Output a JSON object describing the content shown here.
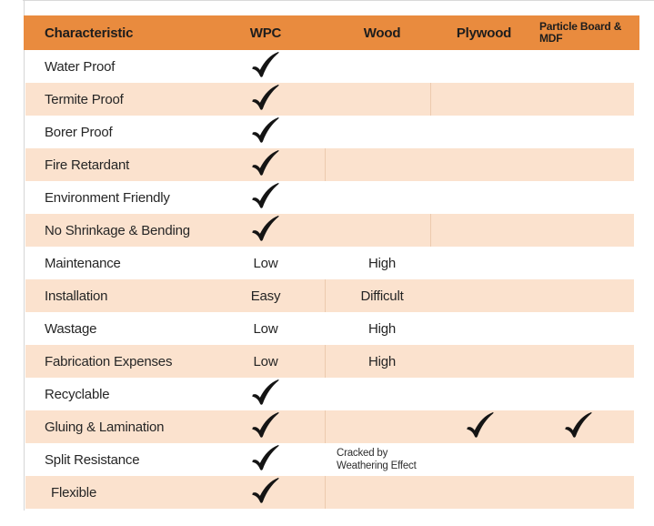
{
  "colors": {
    "header_bg": "#E98B3E",
    "row_shaded_bg": "#FBE2CE",
    "divider_line": "#ECCAAE",
    "check_color": "#141414",
    "text_color": "#262626",
    "page_line": "#D9D9D9"
  },
  "header": {
    "characteristic": "Characteristic",
    "wpc": "WPC",
    "wood": "Wood",
    "plywood": "Plywood",
    "particle_line1": "Particle Board &",
    "particle_line2": "MDF"
  },
  "rows": [
    {
      "label": "Water Proof",
      "shaded": false,
      "divider": null,
      "cells": [
        {
          "col": "wpc",
          "type": "check"
        }
      ]
    },
    {
      "label": "Termite Proof",
      "shaded": true,
      "divider": "wood-plywood",
      "cells": [
        {
          "col": "wpc",
          "type": "check"
        }
      ]
    },
    {
      "label": "Borer Proof",
      "shaded": false,
      "divider": null,
      "cells": [
        {
          "col": "wpc",
          "type": "check"
        }
      ]
    },
    {
      "label": "Fire Retardant",
      "shaded": true,
      "divider": "wpc-wood",
      "cells": [
        {
          "col": "wpc",
          "type": "check"
        }
      ]
    },
    {
      "label": "Environment Friendly",
      "shaded": false,
      "divider": null,
      "cells": [
        {
          "col": "wpc",
          "type": "check"
        }
      ]
    },
    {
      "label": "No Shrinkage & Bending",
      "shaded": true,
      "divider": "wood-plywood",
      "cells": [
        {
          "col": "wpc",
          "type": "check"
        }
      ]
    },
    {
      "label": "Maintenance",
      "shaded": false,
      "divider": null,
      "cells": [
        {
          "col": "wpc",
          "type": "text",
          "value": "Low"
        },
        {
          "col": "wood",
          "type": "text",
          "value": "High"
        }
      ]
    },
    {
      "label": "Installation",
      "shaded": true,
      "divider": "wpc-wood",
      "cells": [
        {
          "col": "wpc",
          "type": "text",
          "value": "Easy"
        },
        {
          "col": "wood",
          "type": "text",
          "value": "Difficult"
        }
      ]
    },
    {
      "label": "Wastage",
      "shaded": false,
      "divider": null,
      "cells": [
        {
          "col": "wpc",
          "type": "text",
          "value": "Low"
        },
        {
          "col": "wood",
          "type": "text",
          "value": "High"
        }
      ]
    },
    {
      "label": "Fabrication Expenses",
      "shaded": true,
      "divider": "wpc-wood",
      "cells": [
        {
          "col": "wpc",
          "type": "text",
          "value": "Low"
        },
        {
          "col": "wood",
          "type": "text",
          "value": "High"
        }
      ]
    },
    {
      "label": "Recyclable",
      "shaded": false,
      "divider": null,
      "cells": [
        {
          "col": "wpc",
          "type": "check"
        }
      ]
    },
    {
      "label": "Gluing & Lamination",
      "shaded": true,
      "divider": "wpc-wood",
      "cells": [
        {
          "col": "wpc",
          "type": "check"
        },
        {
          "col": "plywood",
          "type": "check"
        },
        {
          "col": "particle",
          "type": "check"
        }
      ]
    },
    {
      "label": "Split Resistance",
      "shaded": false,
      "divider": null,
      "cells": [
        {
          "col": "wpc",
          "type": "check"
        },
        {
          "col": "wood",
          "type": "text",
          "small": true,
          "lines": [
            "Cracked by",
            "Weathering Effect"
          ]
        }
      ]
    },
    {
      "label": "Flexible",
      "shaded": true,
      "divider": "wpc-wood",
      "indent": 7,
      "cells": [
        {
          "col": "wpc",
          "type": "check"
        }
      ]
    }
  ]
}
